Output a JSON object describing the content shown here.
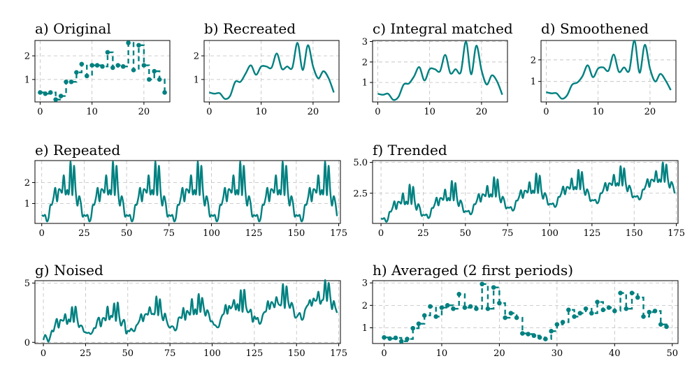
{
  "colors": {
    "series": "#008080"
  },
  "chart_data": [
    {
      "id": "a",
      "type": "line",
      "style": "stem",
      "title": "a) Original",
      "xlim": [
        -1,
        25
      ],
      "ylim": [
        0.05,
        2.65
      ],
      "xticks": [
        0,
        10,
        20
      ],
      "yticks": [
        1,
        2
      ],
      "x": [
        0,
        1,
        2,
        3,
        4,
        5,
        6,
        7,
        8,
        9,
        10,
        11,
        12,
        13,
        14,
        15,
        16,
        17,
        18,
        19,
        20,
        21,
        22,
        23,
        24
      ],
      "values": [
        0.45,
        0.4,
        0.45,
        0.15,
        0.3,
        0.9,
        0.9,
        1.3,
        1.65,
        1.15,
        1.6,
        1.6,
        1.55,
        2.15,
        1.5,
        1.6,
        1.55,
        2.55,
        1.4,
        2.45,
        1.6,
        1.0,
        1.35,
        1.0,
        0.45
      ]
    },
    {
      "id": "b",
      "type": "line",
      "title": "b) Recreated",
      "xlim": [
        -1,
        25
      ],
      "ylim": [
        0.05,
        2.65
      ],
      "xticks": [
        0,
        10,
        20
      ],
      "yticks": [
        1,
        2
      ],
      "x": [
        0,
        1,
        2,
        3,
        4,
        5,
        6,
        7,
        8,
        9,
        10,
        11,
        12,
        13,
        14,
        15,
        16,
        17,
        18,
        19,
        20,
        21,
        22,
        23,
        24
      ],
      "values": [
        0.45,
        0.4,
        0.42,
        0.18,
        0.3,
        0.9,
        0.9,
        1.25,
        1.6,
        1.2,
        1.55,
        1.55,
        1.5,
        2.1,
        1.45,
        1.55,
        1.5,
        2.55,
        1.4,
        2.45,
        1.55,
        1.05,
        1.35,
        1.05,
        0.45
      ]
    },
    {
      "id": "c",
      "type": "line",
      "title": "c) Integral matched",
      "xlim": [
        -1,
        25
      ],
      "ylim": [
        0.05,
        3.05
      ],
      "xticks": [
        0,
        10,
        20
      ],
      "yticks": [
        1,
        2,
        3
      ],
      "x": [
        0,
        1,
        2,
        3,
        4,
        5,
        6,
        7,
        8,
        9,
        10,
        11,
        12,
        13,
        14,
        15,
        16,
        17,
        18,
        19,
        20,
        21,
        22,
        23,
        24
      ],
      "values": [
        0.45,
        0.4,
        0.45,
        0.15,
        0.3,
        0.9,
        0.95,
        1.3,
        1.75,
        1.1,
        1.65,
        1.65,
        1.55,
        2.35,
        1.45,
        1.65,
        1.5,
        3.0,
        1.4,
        2.8,
        1.6,
        0.9,
        1.35,
        1.05,
        0.4
      ]
    },
    {
      "id": "d",
      "type": "line",
      "title": "d) Smoothened",
      "xlim": [
        -1,
        25
      ],
      "ylim": [
        0.05,
        2.9
      ],
      "xticks": [
        0,
        10,
        20
      ],
      "yticks": [
        1,
        2
      ],
      "x": [
        0,
        1,
        2,
        3,
        4,
        5,
        6,
        7,
        8,
        9,
        10,
        11,
        12,
        13,
        14,
        15,
        16,
        17,
        18,
        19,
        20,
        21,
        22,
        23,
        24
      ],
      "values": [
        0.5,
        0.45,
        0.45,
        0.2,
        0.35,
        0.85,
        0.95,
        1.25,
        1.75,
        1.2,
        1.6,
        1.65,
        1.5,
        2.25,
        1.45,
        1.65,
        1.5,
        2.9,
        1.4,
        2.7,
        1.6,
        1.0,
        1.35,
        1.05,
        0.6
      ]
    },
    {
      "id": "e",
      "type": "line",
      "title": "e) Repeated",
      "xlim": [
        -4,
        176
      ],
      "ylim": [
        0.05,
        3.05
      ],
      "xticks": [
        0,
        25,
        50,
        75,
        100,
        125,
        150,
        175
      ],
      "yticks": [
        1,
        2
      ],
      "pattern": [
        0.45,
        0.4,
        0.45,
        0.15,
        0.3,
        0.9,
        0.95,
        1.3,
        1.75,
        1.1,
        1.65,
        1.65,
        1.55,
        2.35,
        1.45,
        1.65,
        1.5,
        3.0,
        1.4,
        2.8,
        1.6,
        0.9,
        1.35,
        1.05,
        0.4
      ],
      "repeat_count": 7
    },
    {
      "id": "f",
      "type": "line",
      "title": "f) Trended",
      "xlim": [
        -5,
        176
      ],
      "ylim": [
        0.05,
        5.15
      ],
      "xticks": [
        0,
        25,
        50,
        75,
        100,
        125,
        150,
        175
      ],
      "yticks": [
        2.5,
        5.0
      ],
      "ytick_labels": [
        "2.5",
        "5.0"
      ],
      "pattern": [
        0.45,
        0.4,
        0.45,
        0.15,
        0.3,
        0.9,
        0.95,
        1.3,
        1.75,
        1.1,
        1.65,
        1.65,
        1.55,
        2.35,
        1.45,
        1.65,
        1.5,
        3.0,
        1.4,
        2.8,
        1.6,
        0.9,
        1.35,
        1.05,
        0.4
      ],
      "repeat_count": 7,
      "trend_per_step": 0.012
    },
    {
      "id": "g",
      "type": "line",
      "title": "g) Noised",
      "xlim": [
        -5,
        176
      ],
      "ylim": [
        -0.1,
        5.2
      ],
      "xticks": [
        0,
        25,
        50,
        75,
        100,
        125,
        150,
        175
      ],
      "yticks": [
        0,
        5
      ],
      "pattern": [
        0.45,
        0.4,
        0.45,
        0.15,
        0.3,
        0.9,
        0.95,
        1.3,
        1.75,
        1.1,
        1.65,
        1.65,
        1.55,
        2.35,
        1.45,
        1.65,
        1.5,
        3.0,
        1.4,
        2.8,
        1.6,
        0.9,
        1.35,
        1.05,
        0.4
      ],
      "repeat_count": 7,
      "trend_per_step": 0.012,
      "noise": 0.25
    },
    {
      "id": "h",
      "type": "line",
      "style": "stem",
      "title": "h) Averaged (2 first periods)",
      "xlim": [
        -2,
        51
      ],
      "ylim": [
        0.3,
        3.1
      ],
      "xticks": [
        0,
        10,
        20,
        30,
        40,
        50
      ],
      "yticks": [
        1,
        2,
        3
      ],
      "x": [
        0,
        1,
        2,
        3,
        4,
        5,
        6,
        7,
        8,
        9,
        10,
        11,
        12,
        13,
        14,
        15,
        16,
        17,
        18,
        19,
        20,
        21,
        22,
        23,
        24,
        25,
        26,
        27,
        28,
        29,
        30,
        31,
        32,
        33,
        34,
        35,
        36,
        37,
        38,
        39,
        40,
        41,
        42,
        43,
        44,
        45,
        46,
        47,
        48,
        49
      ],
      "values": [
        0.57,
        0.52,
        0.55,
        0.4,
        0.5,
        0.98,
        1.18,
        1.55,
        1.95,
        1.5,
        1.9,
        2.0,
        1.85,
        2.5,
        1.9,
        1.95,
        1.85,
        2.95,
        1.85,
        2.8,
        2.1,
        1.45,
        1.65,
        1.45,
        0.75,
        0.72,
        0.65,
        0.57,
        0.5,
        0.85,
        1.15,
        1.25,
        1.8,
        1.5,
        1.65,
        1.85,
        1.65,
        2.15,
        1.8,
        1.9,
        1.75,
        2.55,
        1.85,
        2.55,
        2.35,
        1.5,
        1.7,
        1.75,
        1.15,
        1.05
      ]
    }
  ]
}
